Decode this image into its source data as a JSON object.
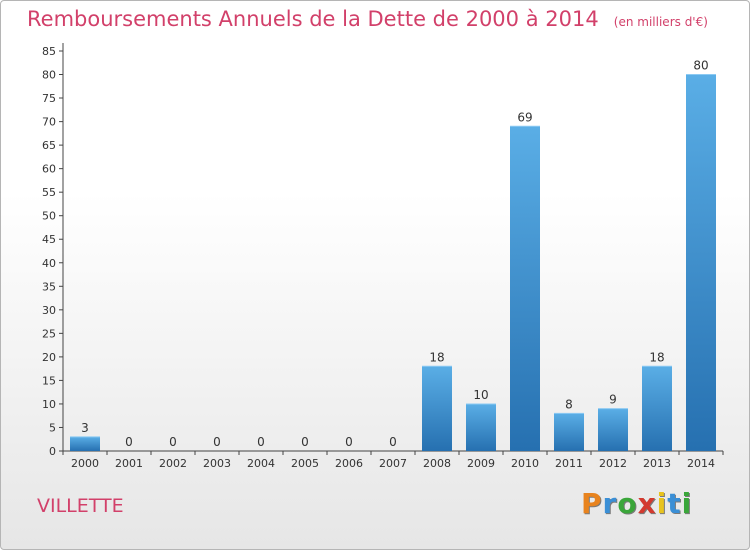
{
  "header": {
    "title": "Remboursements Annuels de la Dette de 2000 à 2014",
    "subtitle": "(en milliers d'€)"
  },
  "footer": {
    "city": "VILLETTE",
    "logo": [
      "P",
      "r",
      "o",
      "x",
      "i",
      "t",
      "i"
    ]
  },
  "colors": {
    "title": "#d2406a",
    "bar_top": "#5aaee6",
    "bar_bottom": "#2670b0",
    "logo": [
      "#e8831e",
      "#3a8fd6",
      "#3aa63a",
      "#d33a2f",
      "#e8c31e",
      "#3a8fd6",
      "#3aa63a"
    ]
  },
  "chart_data": {
    "type": "bar",
    "title": "Remboursements Annuels de la Dette de 2000 à 2014",
    "xlabel": "",
    "ylabel": "",
    "categories": [
      "2000",
      "2001",
      "2002",
      "2003",
      "2004",
      "2005",
      "2006",
      "2007",
      "2008",
      "2009",
      "2010",
      "2011",
      "2012",
      "2013",
      "2014"
    ],
    "values": [
      3,
      0,
      0,
      0,
      0,
      0,
      0,
      0,
      18,
      10,
      69,
      8,
      9,
      18,
      80
    ],
    "ylim": [
      0,
      85
    ],
    "ytick_step": 5,
    "grid": false,
    "legend": "none"
  }
}
